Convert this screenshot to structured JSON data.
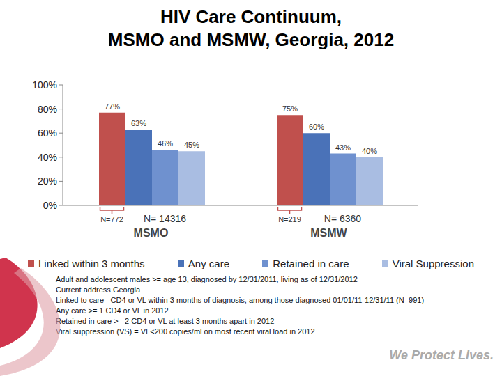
{
  "chart_data": {
    "type": "bar",
    "title": "HIV Care Continuum,\nMSMO and MSMW, Georgia, 2012",
    "categories": [
      "MSMO",
      "MSMW"
    ],
    "series": [
      {
        "name": "Linked within 3 months",
        "color": "#c0504d",
        "values": [
          77,
          75
        ],
        "value_labels": [
          "77%",
          "75%"
        ]
      },
      {
        "name": "Any care",
        "color": "#4a72b8",
        "values": [
          63,
          60
        ],
        "value_labels": [
          "63%",
          "60%"
        ]
      },
      {
        "name": "Retained in care",
        "color": "#6f91cf",
        "values": [
          46,
          43
        ],
        "value_labels": [
          "46%",
          "43%"
        ]
      },
      {
        "name": "Viral Suppression",
        "color": "#a9bde2",
        "values": [
          45,
          40
        ],
        "value_labels": [
          "45%",
          "40%"
        ]
      }
    ],
    "ylim": [
      0,
      100
    ],
    "yticks": [
      {
        "value": 0,
        "label": "0%"
      },
      {
        "value": 20,
        "label": "20%"
      },
      {
        "value": 40,
        "label": "40%"
      },
      {
        "value": 60,
        "label": "60%"
      },
      {
        "value": 80,
        "label": "80%"
      },
      {
        "value": 100,
        "label": "100%"
      }
    ],
    "grid": false,
    "legend": "bottom",
    "data_labels": true,
    "annotations": [
      [
        "N=772",
        "N= 14316"
      ],
      [
        "N=219",
        "N= 6360"
      ]
    ],
    "notes": [
      "Adult and adolescent males >= age 13, diagnosed by 12/31/2011, living as of 12/31/2012",
      "Current address Georgia",
      "Linked to care= CD4 or VL within 3 months of diagnosis, among those diagnosed 01/01/11-12/31/11 (N=991)",
      "Any care >= 1 CD4 or VL in 2012",
      "Retained in care >= 2 CD4 or VL at least 3 months apart in 2012",
      "Viral suppression (VS) = VL<200 copies/ml on most recent viral load in 2012"
    ],
    "footer": "We Protect Lives."
  }
}
